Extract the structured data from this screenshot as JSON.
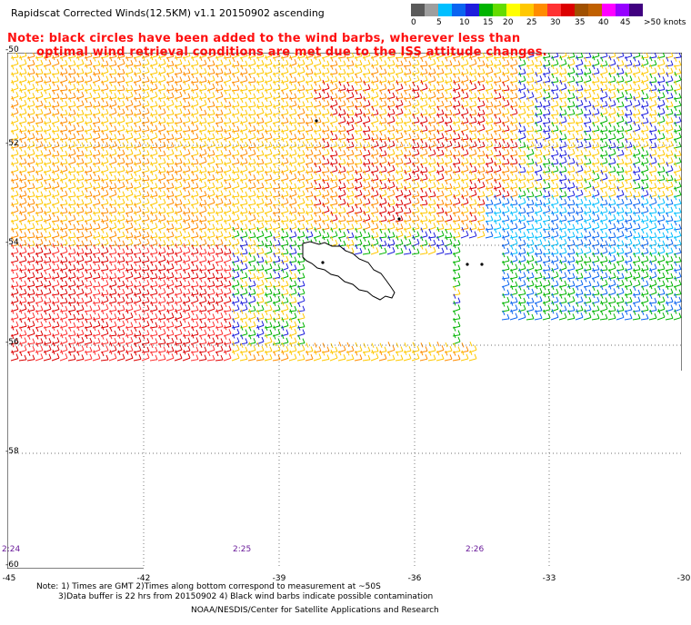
{
  "title": "Rapidscat Corrected Winds(12.5KM) v1.1 20150902 ascending",
  "note_line1": "Note: black circles have been added to the wind barbs, wherever less than",
  "note_line2": "optimal wind retrieval conditions are met due to the ISS attitude changes.",
  "scale": {
    "colors": [
      "#5a5a5a",
      "#9e9e9e",
      "#00bfff",
      "#0a64f0",
      "#1e1edc",
      "#00b400",
      "#64dc00",
      "#ffff00",
      "#ffc800",
      "#ff8c00",
      "#ff3232",
      "#dc0000",
      "#a05000",
      "#c06000",
      "#ff00ff",
      "#9600ff",
      "#400080",
      "#200050",
      "#ff66ff",
      "#6e1ab4"
    ],
    "labels": [
      "0",
      "5",
      "10",
      "15",
      "20",
      "25",
      "30",
      "35",
      "40",
      "45",
      ">50 knots"
    ]
  },
  "lat_labels": [
    "-50",
    "-52",
    "-54",
    "-56",
    "-58",
    "-60"
  ],
  "lon_labels": [
    "-45",
    "-42",
    "-39",
    "-36",
    "-33",
    "-30"
  ],
  "time_labels": [
    "2:24",
    "2:25",
    "2:26"
  ],
  "footer": {
    "line1": "Note: 1) Times are GMT 2)Times along bottom correspond to measurement at ~50S",
    "line2": "3)Data buffer is 22 hrs from 20150902 4) Black wind barbs indicate possible contamination",
    "line3": "NOAA/NESDIS/Center for Satellite Applications and Research"
  }
}
